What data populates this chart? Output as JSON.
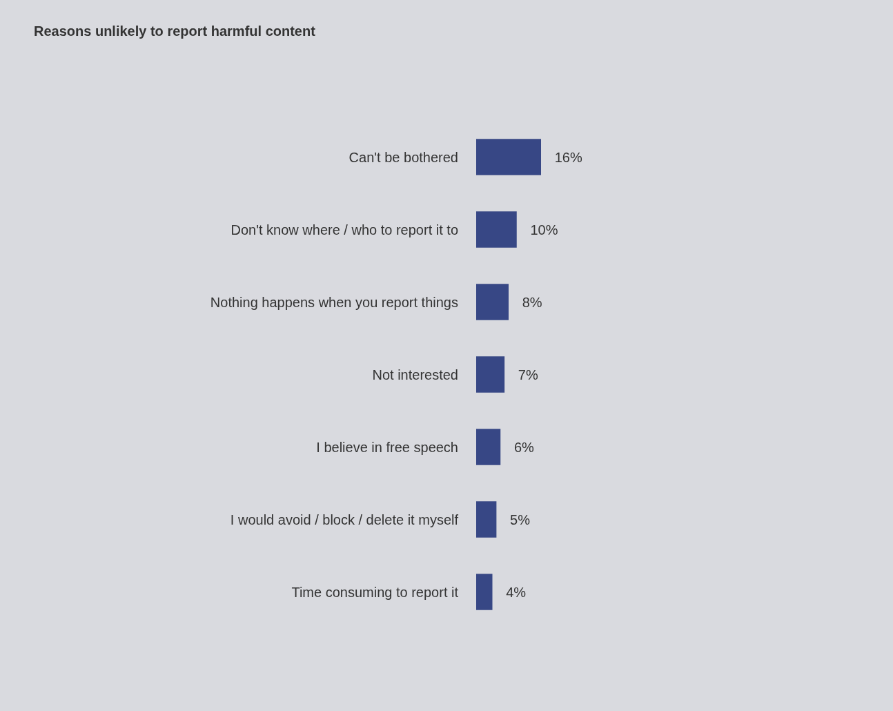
{
  "chart_data": {
    "type": "bar",
    "orientation": "horizontal",
    "title": "Reasons unlikely to report harmful content",
    "categories": [
      "Can't be bothered",
      "Don't know where / who to report it to",
      "Nothing happens when you report things",
      "Not interested",
      "I believe in free speech",
      "I would avoid / block / delete it myself",
      "Time consuming to report it"
    ],
    "values": [
      16,
      10,
      8,
      7,
      6,
      5,
      4
    ],
    "value_labels": [
      "16%",
      "10%",
      "8%",
      "7%",
      "6%",
      "5%",
      "4%"
    ],
    "color": "#374785",
    "legend": false
  }
}
